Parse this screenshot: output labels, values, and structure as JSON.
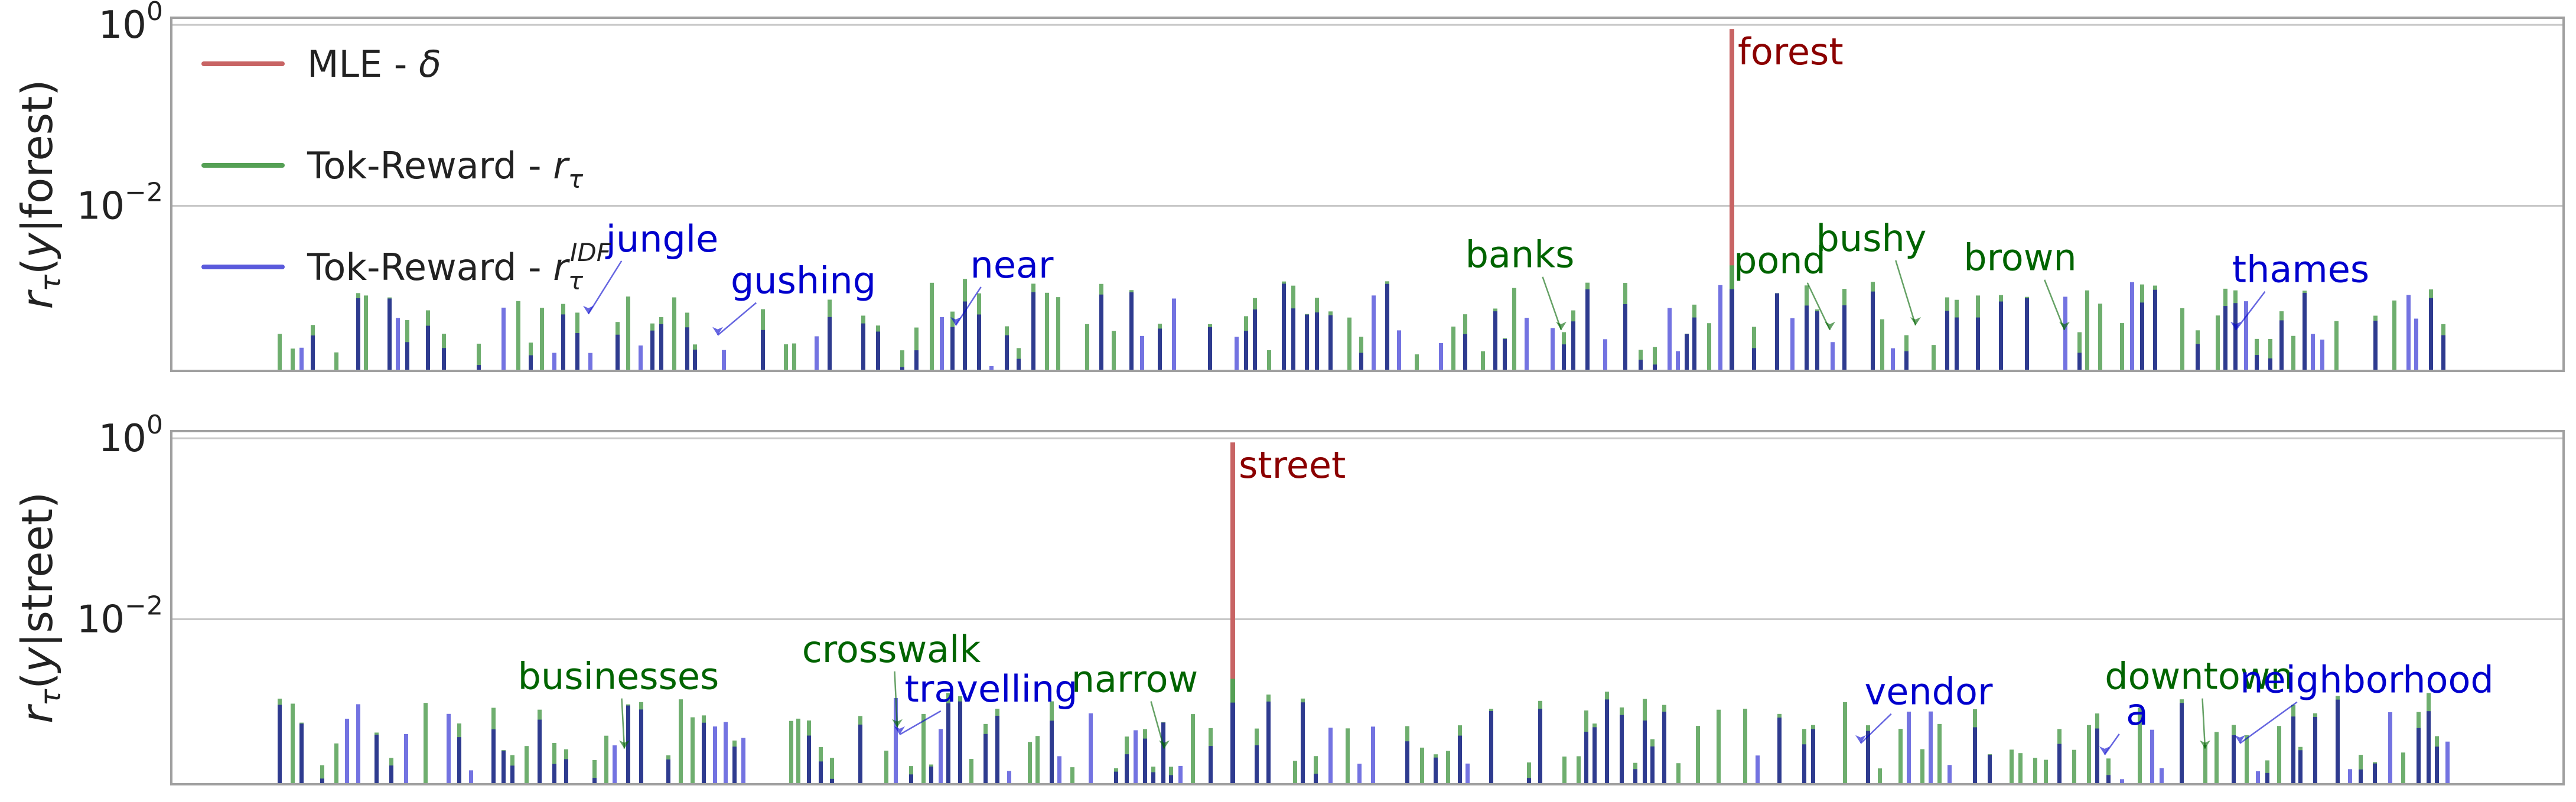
{
  "colors": {
    "mle": "#c86464",
    "tok": "#55a055",
    "idf": "#5a5adc",
    "overlap": "#2e3b8f",
    "spine": "#a0a0a0",
    "grid": "#c8c8c8",
    "red_label": "#8b0000",
    "green_label": "#006400",
    "blue_label": "#0000cd"
  },
  "chart_data": [
    {
      "type": "bar",
      "ylabel": "r_τ(y|forest)",
      "yscale": "log",
      "ylim": [
        0.00015,
        1.2
      ],
      "yticks": [
        {
          "value": 1,
          "base": "10",
          "exp": "0"
        },
        {
          "value": 0.01,
          "base": "10",
          "exp": "−2"
        }
      ],
      "legend": {
        "placement": "top-left",
        "entries": [
          {
            "series": "mle",
            "label": "MLE - ",
            "math": "δ",
            "sup": ""
          },
          {
            "series": "tok",
            "label": "Tok-Reward - ",
            "math": "r",
            "sub": "τ",
            "sup": ""
          },
          {
            "series": "idf",
            "label": "Tok-Reward - ",
            "math": "r",
            "sub": "τ",
            "sup": "IDF"
          }
        ]
      },
      "peak": {
        "x": 2932,
        "value": 0.9,
        "tok": 0.0022,
        "idf": 0.0012
      },
      "annotations": [
        {
          "text": "forest",
          "color": "red_label",
          "x": 2932,
          "value": 0.9,
          "arrow": false
        },
        {
          "text": "jungle",
          "color": "blue_label",
          "x": 996,
          "value": 0.0006
        },
        {
          "text": "gushing",
          "color": "blue_label",
          "x": 1215,
          "value": 0.00035
        },
        {
          "text": "near",
          "color": "blue_label",
          "x": 1618,
          "value": 0.00045
        },
        {
          "text": "banks",
          "color": "green_label",
          "x": 2643,
          "value": 0.0004
        },
        {
          "text": "pond",
          "color": "green_label",
          "x": 3098,
          "value": 0.0004
        },
        {
          "text": "bushy",
          "color": "green_label",
          "x": 3243,
          "value": 0.00045
        },
        {
          "text": "brown",
          "color": "green_label",
          "x": 3495,
          "value": 0.0004
        },
        {
          "text": "thames",
          "color": "blue_label",
          "x": 3785,
          "value": 0.0004
        }
      ],
      "seed": 11
    },
    {
      "type": "bar",
      "ylabel": "r_τ(y|street)",
      "yscale": "log",
      "ylim": [
        0.00015,
        1.2
      ],
      "yticks": [
        {
          "value": 1,
          "base": "10",
          "exp": "0"
        },
        {
          "value": 0.01,
          "base": "10",
          "exp": "−2"
        }
      ],
      "peak": {
        "x": 2087,
        "value": 0.9,
        "tok": 0.0022,
        "idf": 0.0012
      },
      "annotations": [
        {
          "text": "street",
          "color": "red_label",
          "x": 2087,
          "value": 0.9,
          "arrow": false
        },
        {
          "text": "businesses",
          "color": "green_label",
          "x": 1057,
          "value": 0.00035
        },
        {
          "text": "crosswalk",
          "color": "green_label",
          "x": 1519,
          "value": 0.0006
        },
        {
          "text": "travelling",
          "color": "blue_label",
          "x": 1523,
          "value": 0.0005
        },
        {
          "text": "narrow",
          "color": "green_label",
          "x": 1971,
          "value": 0.00035
        },
        {
          "text": "vendor",
          "color": "blue_label",
          "x": 3150,
          "value": 0.0004
        },
        {
          "text": "a",
          "color": "blue_label",
          "x": 3563,
          "value": 0.0003
        },
        {
          "text": "downtown",
          "color": "green_label",
          "x": 3733,
          "value": 0.00035
        },
        {
          "text": "neighborhood",
          "color": "blue_label",
          "x": 3792,
          "value": 0.0004
        }
      ],
      "seed": 29
    }
  ]
}
